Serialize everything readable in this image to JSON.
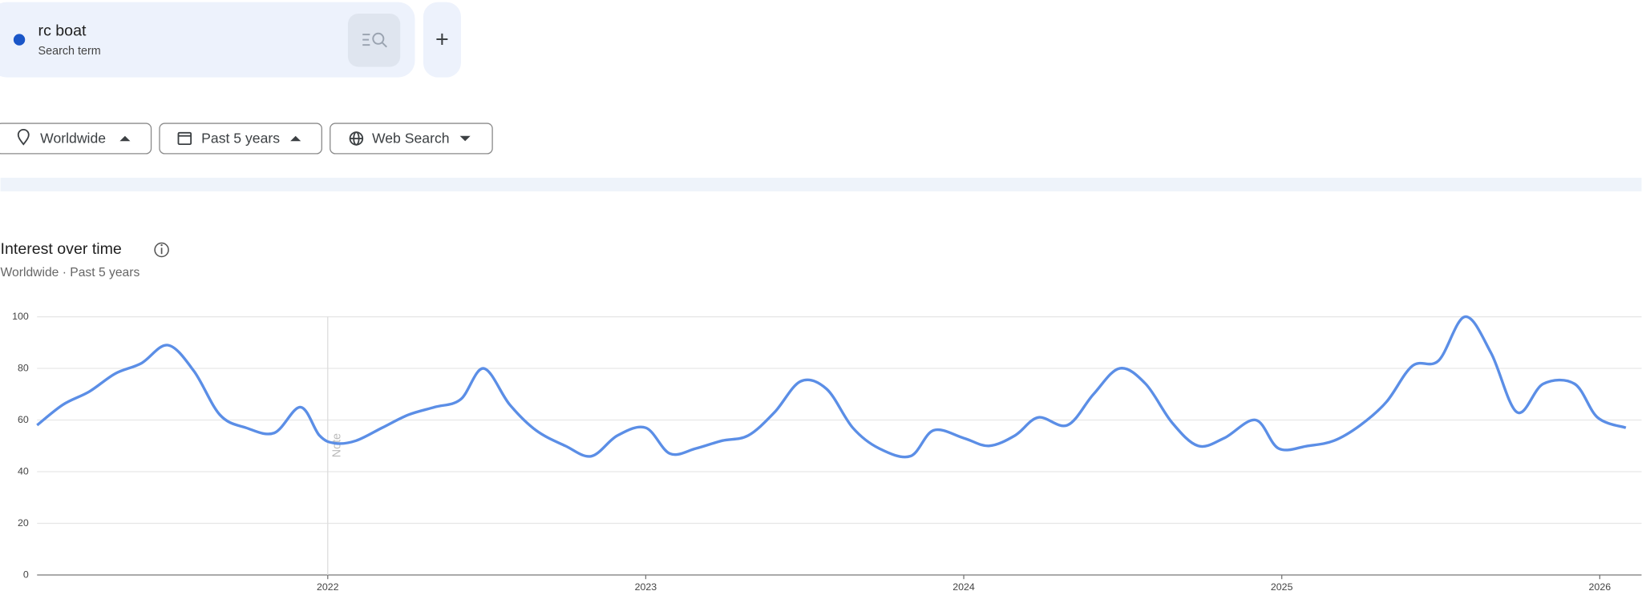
{
  "search_term_label": "Search term",
  "add_button": "+",
  "filters": [
    "Worldwide",
    "Past 5 years",
    "Web Search"
  ],
  "section_title": "Interest over time",
  "section_subtitle": "Worldwide · Past 5 years",
  "chart_data": {
    "type": "line",
    "x": [
      2021.086,
      2021.168,
      2021.25,
      2021.332,
      2021.414,
      2021.497,
      2021.579,
      2021.661,
      2021.743,
      2021.832,
      2021.914,
      2021.974,
      2022.023,
      2022.089,
      2022.171,
      2022.253,
      2022.336,
      2022.418,
      2022.49,
      2022.572,
      2022.655,
      2022.747,
      2022.829,
      2022.911,
      2023.0,
      2023.076,
      2023.158,
      2023.24,
      2023.322,
      2023.405,
      2023.487,
      2023.569,
      2023.651,
      2023.734,
      2023.832,
      2023.905,
      2024.0,
      2024.079,
      2024.161,
      2024.234,
      2024.326,
      2024.408,
      2024.49,
      2024.572,
      2024.655,
      2024.737,
      2024.819,
      2024.918,
      2024.99,
      2025.082,
      2025.164,
      2025.247,
      2025.329,
      2025.411,
      2025.493,
      2025.576,
      2025.658,
      2025.74,
      2025.822,
      2025.921,
      2025.993,
      2026.082
    ],
    "series": [
      {
        "name": "rc boat",
        "color": "#5b8ee6",
        "values": [
          58,
          66,
          71,
          78,
          82,
          89,
          79,
          62,
          57,
          55,
          65,
          54,
          51,
          52,
          57,
          62,
          65,
          68,
          80,
          66,
          56,
          50,
          46,
          54,
          57,
          47,
          49,
          52,
          54,
          63,
          75,
          72,
          57,
          49,
          46,
          56,
          53,
          50,
          54,
          61,
          58,
          70,
          80,
          74,
          59,
          50,
          53,
          60,
          49,
          50,
          52,
          58,
          67,
          81,
          83,
          100,
          86,
          63,
          74,
          74,
          61,
          57
        ]
      }
    ],
    "xlim": [
      2021.086,
      2026.082
    ],
    "xticks": [
      2022,
      2023,
      2024,
      2025,
      2026
    ],
    "ylim": [
      0,
      100
    ],
    "yticks": [
      0,
      20,
      40,
      60,
      80,
      100
    ],
    "grid": true,
    "annotation": "Note"
  }
}
